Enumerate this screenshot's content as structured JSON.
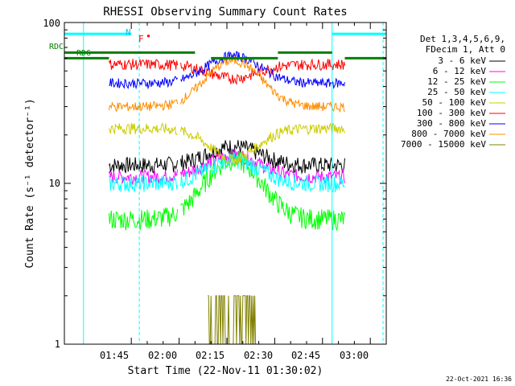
{
  "chart_data": {
    "type": "line",
    "title": "RHESSI Observing Summary Count Rates",
    "xlabel": "Start Time (22-Nov-11 01:30:02)",
    "ylabel": "Count Rate (s⁻¹ detector⁻¹)",
    "y_scale": "log",
    "ylim": [
      1,
      100
    ],
    "xlim_minutes_after_start": [
      -6,
      95
    ],
    "x_ticks": [
      {
        "label": "01:45",
        "minutes": 15
      },
      {
        "label": "02:00",
        "minutes": 30
      },
      {
        "label": "02:15",
        "minutes": 45
      },
      {
        "label": "02:30",
        "minutes": 60
      },
      {
        "label": "02:45",
        "minutes": 75
      },
      {
        "label": "03:00",
        "minutes": 90
      }
    ],
    "y_tick_labels": [
      "1",
      "10",
      "100"
    ],
    "legend_header": [
      "Det 1,3,4,5,6,9,",
      "FDecim 1, Att 0"
    ],
    "legend_position": "right",
    "series": [
      {
        "name": "3 - 6 keV",
        "color": "#000000",
        "approx_levels": {
          "baseline": 13,
          "peak": 17
        }
      },
      {
        "name": "6 - 12 keV",
        "color": "#ff00ff",
        "approx_levels": {
          "baseline": 11,
          "peak": 15
        }
      },
      {
        "name": "12 - 25 keV",
        "color": "#00ff00",
        "approx_levels": {
          "baseline": 6,
          "peak": 14
        }
      },
      {
        "name": "25 - 50 keV",
        "color": "#00ffff",
        "approx_levels": {
          "baseline": 10,
          "peak": 14
        }
      },
      {
        "name": "50 - 100 keV",
        "color": "#cccc00",
        "approx_levels": {
          "baseline": 22,
          "peak": 14
        }
      },
      {
        "name": "100 - 300 keV",
        "color": "#ff0000",
        "approx_levels": {
          "baseline": 55,
          "peak": 45
        }
      },
      {
        "name": "300 - 800 keV",
        "color": "#0000ff",
        "approx_levels": {
          "baseline": 42,
          "peak": 62
        }
      },
      {
        "name": "800 - 7000 keV",
        "color": "#ff8c00",
        "approx_levels": {
          "baseline": 30,
          "peak": 58
        }
      },
      {
        "name": "7000 - 15000 keV",
        "color": "#808000",
        "approx_levels": {
          "baseline": 0,
          "peak": 2
        }
      }
    ],
    "annotations": {
      "N": {
        "label": "N",
        "color": "#00bfff"
      },
      "F": {
        "label": "F",
        "color": "#ff0000"
      },
      "RDC": {
        "label": "RDC",
        "color": "#008000"
      },
      "RD6": {
        "label": "RD6",
        "color": "#008000"
      }
    },
    "grid": false
  },
  "footer": {
    "timestamp": "22-Oct-2021 16:36"
  }
}
